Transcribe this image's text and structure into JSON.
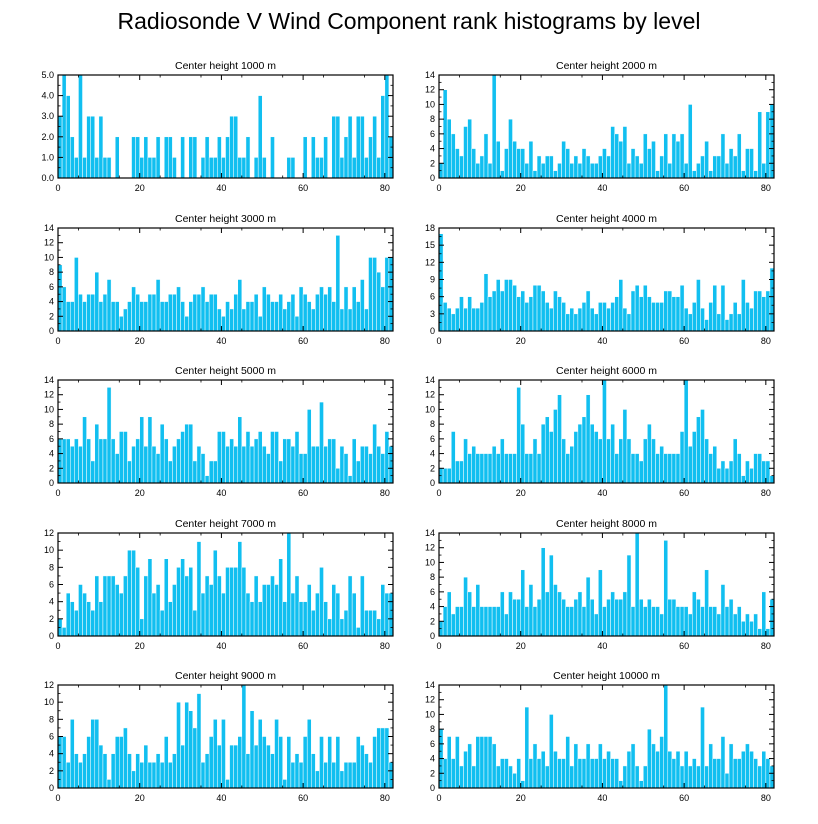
{
  "title": "Radiosonde V Wind Component rank histograms by level",
  "colors": {
    "bar": "#11bff0",
    "axis": "#000000",
    "background": "#ffffff"
  },
  "chart_data": [
    {
      "type": "bar",
      "title": "Center height 1000 m",
      "x_ticks": [
        0,
        20,
        40,
        60,
        80
      ],
      "y_ticks": [
        "0.0",
        "1.0",
        "2.0",
        "3.0",
        "4.0",
        "5.0"
      ],
      "xlim": [
        0,
        82
      ],
      "ylim": [
        0,
        5
      ],
      "values": [
        3,
        5,
        4,
        2,
        1,
        5,
        1,
        3,
        3,
        1,
        3,
        1,
        1,
        0,
        2,
        0,
        0,
        0,
        2,
        2,
        1,
        2,
        1,
        1,
        2,
        0,
        2,
        2,
        1,
        0,
        2,
        0,
        2,
        2,
        0,
        1,
        2,
        1,
        1,
        2,
        1,
        2,
        3,
        3,
        1,
        1,
        2,
        0,
        1,
        4,
        1,
        0,
        2,
        0,
        0,
        0,
        1,
        1,
        0,
        0,
        2,
        0,
        2,
        1,
        1,
        2,
        0,
        3,
        3,
        1,
        2,
        3,
        1,
        3,
        3,
        1,
        2,
        3,
        1,
        4,
        5,
        2
      ]
    },
    {
      "type": "bar",
      "title": "Center height 2000 m",
      "x_ticks": [
        0,
        20,
        40,
        60,
        80
      ],
      "y_ticks": [
        "0",
        "2",
        "4",
        "6",
        "8",
        "10",
        "12",
        "14"
      ],
      "xlim": [
        0,
        82
      ],
      "ylim": [
        0,
        14
      ],
      "values": [
        2,
        12,
        8,
        6,
        4,
        3,
        7,
        8,
        4,
        2,
        3,
        6,
        2,
        14,
        5,
        1,
        4,
        8,
        5,
        4,
        4,
        2,
        5,
        1,
        3,
        2,
        3,
        3,
        1,
        2,
        5,
        4,
        2,
        3,
        2,
        4,
        3,
        2,
        2,
        3,
        4,
        3,
        7,
        6,
        5,
        7,
        2,
        4,
        3,
        2,
        6,
        4,
        5,
        1,
        3,
        6,
        2,
        6,
        5,
        6,
        2,
        10,
        1,
        2,
        3,
        5,
        1,
        3,
        3,
        6,
        2,
        4,
        3,
        6,
        1,
        4,
        4,
        1,
        9,
        2,
        9,
        10
      ]
    },
    {
      "type": "bar",
      "title": "Center height 3000 m",
      "x_ticks": [
        0,
        20,
        40,
        60,
        80
      ],
      "y_ticks": [
        "0",
        "2",
        "4",
        "6",
        "8",
        "10",
        "12",
        "14"
      ],
      "xlim": [
        0,
        82
      ],
      "ylim": [
        0,
        14
      ],
      "values": [
        9,
        6,
        4,
        4,
        10,
        5,
        4,
        5,
        5,
        8,
        4,
        5,
        7,
        4,
        4,
        2,
        3,
        4,
        6,
        5,
        4,
        4,
        5,
        5,
        7,
        4,
        4,
        5,
        5,
        6,
        4,
        2,
        4,
        5,
        5,
        6,
        4,
        5,
        5,
        3,
        2,
        4,
        3,
        5,
        7,
        3,
        4,
        4,
        5,
        2,
        6,
        5,
        4,
        4,
        5,
        3,
        4,
        5,
        2,
        6,
        5,
        4,
        3,
        5,
        6,
        5,
        6,
        4,
        13,
        3,
        6,
        3,
        6,
        4,
        7,
        3,
        10,
        10,
        8,
        6,
        10,
        10
      ]
    },
    {
      "type": "bar",
      "title": "Center height 4000 m",
      "x_ticks": [
        0,
        20,
        40,
        60,
        80
      ],
      "y_ticks": [
        "0",
        "3",
        "6",
        "9",
        "12",
        "15",
        "18"
      ],
      "xlim": [
        0,
        82
      ],
      "ylim": [
        0,
        18
      ],
      "values": [
        17,
        5,
        4,
        3,
        4,
        6,
        4,
        6,
        4,
        4,
        5,
        10,
        6,
        7,
        9,
        7,
        9,
        9,
        8,
        6,
        7,
        5,
        6,
        8,
        8,
        7,
        5,
        4,
        7,
        6,
        5,
        3,
        4,
        3,
        4,
        5,
        7,
        4,
        3,
        5,
        5,
        4,
        5,
        6,
        9,
        4,
        3,
        7,
        8,
        6,
        8,
        6,
        5,
        5,
        5,
        7,
        7,
        6,
        6,
        8,
        4,
        3,
        5,
        9,
        4,
        2,
        5,
        8,
        3,
        8,
        2,
        3,
        5,
        3,
        9,
        5,
        4,
        7,
        7,
        6,
        7,
        11
      ]
    },
    {
      "type": "bar",
      "title": "Center height 5000 m",
      "x_ticks": [
        0,
        20,
        40,
        60,
        80
      ],
      "y_ticks": [
        "0",
        "2",
        "4",
        "6",
        "8",
        "10",
        "12",
        "14"
      ],
      "xlim": [
        0,
        82
      ],
      "ylim": [
        0,
        14
      ],
      "values": [
        6,
        6,
        6,
        5,
        6,
        5,
        9,
        6,
        3,
        8,
        6,
        6,
        13,
        6,
        4,
        7,
        7,
        3,
        5,
        6,
        9,
        5,
        9,
        5,
        4,
        8,
        6,
        3,
        5,
        6,
        7,
        8,
        8,
        3,
        5,
        4,
        1,
        3,
        3,
        7,
        7,
        5,
        6,
        5,
        9,
        5,
        7,
        5,
        6,
        7,
        5,
        4,
        7,
        7,
        3,
        6,
        6,
        5,
        7,
        4,
        4,
        10,
        5,
        5,
        11,
        5,
        6,
        6,
        2,
        5,
        4,
        1,
        6,
        3,
        5,
        5,
        4,
        8,
        5,
        4,
        7,
        5
      ]
    },
    {
      "type": "bar",
      "title": "Center height 6000 m",
      "x_ticks": [
        0,
        20,
        40,
        60,
        80
      ],
      "y_ticks": [
        "0",
        "2",
        "4",
        "6",
        "8",
        "10",
        "12",
        "14"
      ],
      "xlim": [
        0,
        82
      ],
      "ylim": [
        0,
        14
      ],
      "values": [
        2,
        2,
        2,
        7,
        3,
        3,
        6,
        4,
        5,
        4,
        4,
        4,
        4,
        5,
        4,
        6,
        4,
        4,
        4,
        13,
        8,
        4,
        4,
        6,
        4,
        8,
        9,
        7,
        10,
        12,
        6,
        4,
        5,
        7,
        8,
        9,
        12,
        8,
        7,
        6,
        14,
        6,
        8,
        4,
        6,
        10,
        6,
        4,
        4,
        3,
        6,
        8,
        6,
        4,
        5,
        4,
        4,
        4,
        4,
        7,
        14,
        5,
        7,
        9,
        10,
        6,
        4,
        5,
        2,
        3,
        2,
        3,
        6,
        4,
        1,
        3,
        2,
        4,
        4,
        3,
        3,
        1
      ]
    },
    {
      "type": "bar",
      "title": "Center height 7000 m",
      "x_ticks": [
        0,
        20,
        40,
        60,
        80
      ],
      "y_ticks": [
        "0",
        "2",
        "4",
        "6",
        "8",
        "10",
        "12"
      ],
      "xlim": [
        0,
        82
      ],
      "ylim": [
        0,
        12
      ],
      "values": [
        2,
        1,
        5,
        4,
        3,
        6,
        5,
        4,
        3,
        7,
        4,
        7,
        7,
        7,
        6,
        5,
        7,
        10,
        10,
        8,
        2,
        7,
        9,
        5,
        6,
        3,
        9,
        4,
        6,
        8,
        9,
        7,
        8,
        3,
        11,
        5,
        7,
        6,
        10,
        7,
        5,
        8,
        8,
        8,
        11,
        8,
        5,
        4,
        7,
        4,
        6,
        6,
        7,
        6,
        9,
        4,
        12,
        5,
        7,
        4,
        4,
        6,
        3,
        5,
        8,
        4,
        2,
        6,
        5,
        2,
        3,
        7,
        5,
        1,
        7,
        3,
        3,
        3,
        2,
        6,
        5,
        5
      ]
    },
    {
      "type": "bar",
      "title": "Center height 8000 m",
      "x_ticks": [
        0,
        20,
        40,
        60,
        80
      ],
      "y_ticks": [
        "0",
        "2",
        "4",
        "6",
        "8",
        "10",
        "12",
        "14"
      ],
      "xlim": [
        0,
        82
      ],
      "ylim": [
        0,
        14
      ],
      "values": [
        2,
        4,
        6,
        3,
        4,
        4,
        8,
        6,
        4,
        7,
        4,
        4,
        4,
        4,
        4,
        6,
        3,
        6,
        5,
        5,
        9,
        4,
        7,
        4,
        5,
        12,
        6,
        11,
        7,
        6,
        5,
        4,
        4,
        5,
        6,
        4,
        8,
        5,
        3,
        9,
        4,
        5,
        6,
        5,
        5,
        6,
        11,
        4,
        14,
        5,
        4,
        5,
        4,
        4,
        3,
        13,
        5,
        5,
        4,
        4,
        4,
        3,
        6,
        5,
        4,
        9,
        4,
        4,
        3,
        7,
        4,
        5,
        3,
        4,
        2,
        3,
        2,
        3,
        1,
        6,
        1,
        5
      ]
    },
    {
      "type": "bar",
      "title": "Center height 9000 m",
      "x_ticks": [
        0,
        20,
        40,
        60,
        80
      ],
      "y_ticks": [
        "0",
        "2",
        "4",
        "6",
        "8",
        "10",
        "12"
      ],
      "xlim": [
        0,
        82
      ],
      "ylim": [
        0,
        12
      ],
      "values": [
        6,
        6,
        3,
        8,
        4,
        3,
        4,
        6,
        8,
        8,
        5,
        4,
        1,
        4,
        6,
        6,
        7,
        4,
        2,
        4,
        3,
        5,
        3,
        3,
        4,
        3,
        6,
        3,
        4,
        10,
        5,
        10,
        9,
        7,
        11,
        3,
        4,
        6,
        8,
        5,
        8,
        1,
        5,
        5,
        6,
        12,
        4,
        9,
        5,
        8,
        6,
        5,
        4,
        8,
        6,
        1,
        6,
        3,
        4,
        3,
        6,
        8,
        4,
        2,
        6,
        3,
        6,
        3,
        6,
        2,
        3,
        3,
        3,
        6,
        5,
        4,
        3,
        6,
        7,
        7,
        7,
        3
      ]
    },
    {
      "type": "bar",
      "title": "Center height 10000 m",
      "x_ticks": [
        0,
        20,
        40,
        60,
        80
      ],
      "y_ticks": [
        "0",
        "2",
        "4",
        "6",
        "8",
        "10",
        "12",
        "14"
      ],
      "xlim": [
        0,
        82
      ],
      "ylim": [
        0,
        14
      ],
      "values": [
        8,
        4,
        7,
        4,
        7,
        3,
        5,
        6,
        3,
        7,
        7,
        7,
        7,
        6,
        3,
        4,
        4,
        3,
        2,
        4,
        1,
        11,
        4,
        6,
        4,
        5,
        3,
        10,
        5,
        4,
        4,
        7,
        3,
        6,
        4,
        4,
        6,
        4,
        4,
        6,
        4,
        5,
        4,
        4,
        1,
        3,
        5,
        6,
        3,
        1,
        3,
        8,
        6,
        5,
        7,
        14,
        5,
        4,
        5,
        3,
        5,
        3,
        4,
        3,
        11,
        3,
        6,
        4,
        4,
        7,
        2,
        6,
        4,
        4,
        5,
        6,
        5,
        4,
        3,
        5,
        4,
        3
      ]
    }
  ]
}
